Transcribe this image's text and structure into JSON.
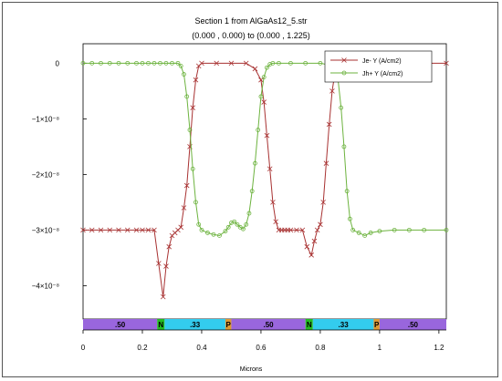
{
  "chart_data": {
    "type": "line",
    "title": "Section 1 from AlGaAs12_5.str",
    "subtitle": "(0.000 , 0.000) to (0.000 , 1.225)",
    "xlabel": "Microns",
    "ylabel": "",
    "xlim": [
      0,
      1.225
    ],
    "ylim": [
      -4.6e-08,
      3.5e-09
    ],
    "x_ticks": [
      0,
      0.2,
      0.4,
      0.6,
      0.8,
      1,
      1.2
    ],
    "x_tick_labels": [
      "0",
      "0.2",
      "0.4",
      "0.6",
      "0.8",
      "1",
      "1.2"
    ],
    "y_ticks": [
      0,
      -1e-08,
      -2e-08,
      -3e-08,
      -4e-08
    ],
    "y_tick_labels": [
      "0",
      "−1×10⁻⁸",
      "−2×10⁻⁸",
      "−3×10⁻⁸",
      "−4×10⁻⁸"
    ],
    "grid": false,
    "legend_position": "top-right",
    "series": [
      {
        "name": "Je- Y (A/cm2)",
        "color": "#a83232",
        "marker": "x",
        "x": [
          0,
          0.03,
          0.06,
          0.09,
          0.12,
          0.15,
          0.18,
          0.2,
          0.22,
          0.24,
          0.255,
          0.27,
          0.28,
          0.29,
          0.3,
          0.31,
          0.32,
          0.33,
          0.34,
          0.35,
          0.36,
          0.37,
          0.38,
          0.39,
          0.4,
          0.45,
          0.5,
          0.55,
          0.58,
          0.6,
          0.61,
          0.62,
          0.63,
          0.64,
          0.65,
          0.66,
          0.67,
          0.68,
          0.69,
          0.7,
          0.72,
          0.74,
          0.755,
          0.77,
          0.78,
          0.79,
          0.8,
          0.81,
          0.82,
          0.83,
          0.84,
          0.85,
          0.86,
          0.87,
          0.88,
          0.9,
          0.95,
          1.0,
          1.1,
          1.225
        ],
        "y": [
          -3e-08,
          -3e-08,
          -3e-08,
          -3e-08,
          -3e-08,
          -3e-08,
          -3e-08,
          -3e-08,
          -3e-08,
          -3e-08,
          -3.6e-08,
          -4.2e-08,
          -3.65e-08,
          -3.3e-08,
          -3.1e-08,
          -3.05e-08,
          -3e-08,
          -2.95e-08,
          -2.6e-08,
          -2.2e-08,
          -1.5e-08,
          -8e-09,
          -3e-09,
          -5e-10,
          0,
          0,
          0,
          0,
          -1e-09,
          -3e-09,
          -7e-09,
          -1.3e-08,
          -1.9e-08,
          -2.5e-08,
          -2.85e-08,
          -3e-08,
          -3e-08,
          -3e-08,
          -3e-08,
          -3e-08,
          -3e-08,
          -3e-08,
          -3.3e-08,
          -3.45e-08,
          -3.2e-08,
          -3e-08,
          -2.9e-08,
          -2.5e-08,
          -1.8e-08,
          -1.1e-08,
          -5e-09,
          -1.5e-09,
          -3e-10,
          0,
          0,
          0,
          0,
          0,
          0,
          0
        ]
      },
      {
        "name": "Jh+ Y (A/cm2)",
        "color": "#6db33f",
        "marker": "o",
        "x": [
          0,
          0.03,
          0.06,
          0.09,
          0.12,
          0.15,
          0.18,
          0.2,
          0.22,
          0.24,
          0.26,
          0.28,
          0.3,
          0.32,
          0.33,
          0.34,
          0.35,
          0.36,
          0.37,
          0.38,
          0.39,
          0.4,
          0.42,
          0.44,
          0.46,
          0.48,
          0.49,
          0.5,
          0.51,
          0.52,
          0.53,
          0.54,
          0.55,
          0.56,
          0.57,
          0.58,
          0.59,
          0.6,
          0.61,
          0.62,
          0.63,
          0.64,
          0.66,
          0.7,
          0.75,
          0.8,
          0.85,
          0.86,
          0.87,
          0.88,
          0.89,
          0.9,
          0.91,
          0.93,
          0.95,
          0.97,
          1.0,
          1.05,
          1.1,
          1.15,
          1.225
        ],
        "y": [
          0,
          0,
          0,
          0,
          0,
          0,
          0,
          0,
          0,
          0,
          0,
          0,
          0,
          0,
          -5e-10,
          -2e-09,
          -6e-09,
          -1.2e-08,
          -1.9e-08,
          -2.5e-08,
          -2.9e-08,
          -3e-08,
          -3.05e-08,
          -3.08e-08,
          -3.1e-08,
          -3.02e-08,
          -2.95e-08,
          -2.87e-08,
          -2.85e-08,
          -2.9e-08,
          -2.95e-08,
          -2.98e-08,
          -2.9e-08,
          -2.7e-08,
          -2.3e-08,
          -1.8e-08,
          -1.2e-08,
          -6e-09,
          -2.5e-09,
          -8e-10,
          -2e-10,
          0,
          0,
          0,
          0,
          0,
          -5e-10,
          -3e-09,
          -8e-09,
          -1.5e-08,
          -2.3e-08,
          -2.8e-08,
          -3e-08,
          -3.05e-08,
          -3.1e-08,
          -3.05e-08,
          -3.02e-08,
          -3e-08,
          -3e-08,
          -3e-08,
          -3e-08
        ]
      }
    ],
    "region_bar": [
      {
        "label": ".50",
        "x0": 0,
        "x1": 0.25,
        "color": "#9966dd"
      },
      {
        "label": "N",
        "x0": 0.25,
        "x1": 0.275,
        "color": "#22bb22"
      },
      {
        "label": ".33",
        "x0": 0.275,
        "x1": 0.48,
        "color": "#33ccee"
      },
      {
        "label": "P",
        "x0": 0.48,
        "x1": 0.5,
        "color": "#dd9933"
      },
      {
        "label": ".50",
        "x0": 0.5,
        "x1": 0.75,
        "color": "#9966dd"
      },
      {
        "label": "N",
        "x0": 0.75,
        "x1": 0.775,
        "color": "#22bb22"
      },
      {
        "label": ".33",
        "x0": 0.775,
        "x1": 0.98,
        "color": "#33ccee"
      },
      {
        "label": "P",
        "x0": 0.98,
        "x1": 1.0,
        "color": "#dd9933"
      },
      {
        "label": ".50",
        "x0": 1.0,
        "x1": 1.225,
        "color": "#9966dd"
      }
    ]
  }
}
